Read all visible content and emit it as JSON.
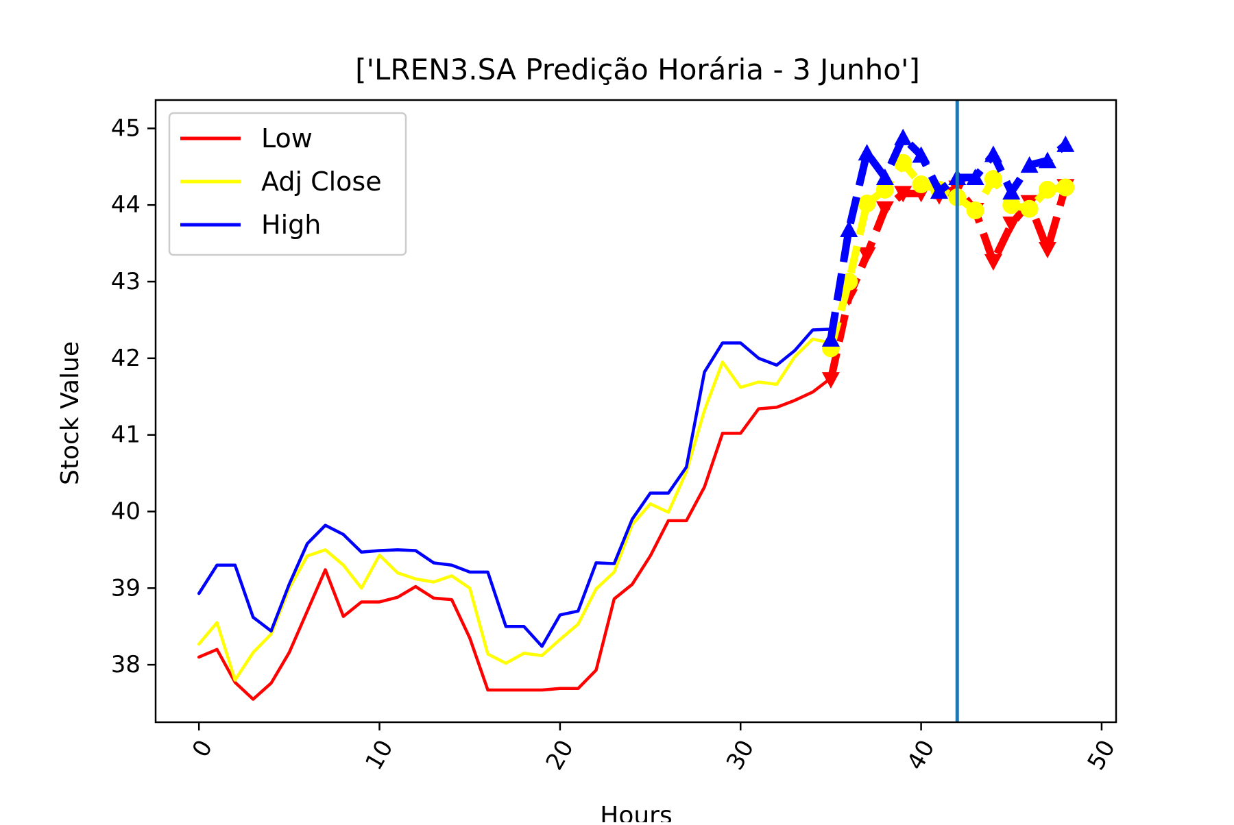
{
  "chart_data": {
    "type": "line",
    "title": "['LREN3.SA Predição Horária - 3 Junho']",
    "xlabel": "Hours",
    "ylabel": "Stock Value",
    "xlim": [
      -2.4,
      50.8
    ],
    "ylim": [
      37.25,
      45.37
    ],
    "xticks": [
      0,
      10,
      20,
      30,
      40,
      50
    ],
    "yticks": [
      38,
      39,
      40,
      41,
      42,
      43,
      44,
      45
    ],
    "grid": false,
    "legend_position": "upper left",
    "vertical_line": {
      "x": 42,
      "color": "#1f77b4"
    },
    "series": [
      {
        "name": "Low",
        "color": "#ff0000",
        "kind": "actual",
        "x": [
          0,
          1,
          2,
          3,
          4,
          5,
          6,
          7,
          8,
          9,
          10,
          11,
          12,
          13,
          14,
          15,
          16,
          17,
          18,
          19,
          20,
          21,
          22,
          23,
          24,
          25,
          26,
          27,
          28,
          29,
          30,
          31,
          32,
          33,
          34,
          35
        ],
        "values": [
          38.1,
          38.2,
          37.77,
          37.55,
          37.76,
          38.16,
          38.7,
          39.24,
          38.63,
          38.82,
          38.82,
          38.88,
          39.02,
          38.87,
          38.85,
          38.35,
          37.67,
          37.67,
          37.67,
          37.67,
          37.69,
          37.69,
          37.93,
          38.86,
          39.05,
          39.42,
          39.88,
          39.88,
          40.32,
          41.02,
          41.02,
          41.34,
          41.36,
          41.45,
          41.56,
          41.74
        ]
      },
      {
        "name": "Adj Close",
        "color": "#ffff00",
        "kind": "actual",
        "x": [
          0,
          1,
          2,
          3,
          4,
          5,
          6,
          7,
          8,
          9,
          10,
          11,
          12,
          13,
          14,
          15,
          16,
          17,
          18,
          19,
          20,
          21,
          22,
          23,
          24,
          25,
          26,
          27,
          28,
          29,
          30,
          31,
          32,
          33,
          34,
          35
        ],
        "values": [
          38.27,
          38.55,
          37.8,
          38.16,
          38.4,
          39.0,
          39.42,
          39.5,
          39.3,
          39.0,
          39.43,
          39.2,
          39.12,
          39.08,
          39.16,
          39.0,
          38.14,
          38.02,
          38.15,
          38.12,
          38.33,
          38.53,
          38.99,
          39.21,
          39.83,
          40.1,
          39.99,
          40.52,
          41.32,
          41.95,
          41.62,
          41.69,
          41.66,
          42.02,
          42.25,
          42.2
        ]
      },
      {
        "name": "High",
        "color": "#0000ff",
        "kind": "actual",
        "x": [
          0,
          1,
          2,
          3,
          4,
          5,
          6,
          7,
          8,
          9,
          10,
          11,
          12,
          13,
          14,
          15,
          16,
          17,
          18,
          19,
          20,
          21,
          22,
          23,
          24,
          25,
          26,
          27,
          28,
          29,
          30,
          31,
          32,
          33,
          34,
          35
        ],
        "values": [
          38.93,
          39.3,
          39.3,
          38.62,
          38.44,
          39.05,
          39.58,
          39.82,
          39.7,
          39.47,
          39.49,
          39.5,
          39.49,
          39.33,
          39.3,
          39.21,
          39.21,
          38.5,
          38.5,
          38.24,
          38.65,
          38.7,
          39.33,
          39.32,
          39.9,
          40.24,
          40.24,
          40.58,
          41.82,
          42.2,
          42.2,
          42.0,
          41.91,
          42.1,
          42.37,
          42.38
        ]
      },
      {
        "name": "",
        "color": "#ff0000",
        "kind": "predicted",
        "marker": "triangle-down",
        "x": [
          35,
          36,
          37,
          38,
          39,
          40,
          41,
          42,
          43,
          44,
          45,
          46,
          47,
          48
        ],
        "values": [
          41.72,
          42.8,
          43.35,
          43.95,
          44.15,
          44.15,
          44.12,
          44.22,
          43.93,
          43.26,
          43.75,
          44.03,
          43.42,
          44.24
        ]
      },
      {
        "name": "",
        "color": "#ffff00",
        "kind": "predicted",
        "marker": "circle",
        "x": [
          35,
          36,
          37,
          38,
          39,
          40,
          41,
          42,
          43,
          44,
          45,
          46,
          47,
          48
        ],
        "values": [
          42.13,
          43.0,
          44.02,
          44.2,
          44.55,
          44.27,
          44.2,
          44.1,
          43.93,
          44.34,
          44.0,
          43.95,
          44.2,
          44.23
        ]
      },
      {
        "name": "",
        "color": "#0000ff",
        "kind": "predicted",
        "marker": "triangle-up",
        "x": [
          35,
          36,
          37,
          38,
          39,
          40,
          41,
          42,
          43,
          44,
          45,
          46,
          47,
          48
        ],
        "values": [
          42.25,
          43.68,
          44.68,
          44.36,
          44.88,
          44.65,
          44.18,
          44.36,
          44.36,
          44.66,
          44.17,
          44.52,
          44.58,
          44.79
        ]
      }
    ]
  }
}
